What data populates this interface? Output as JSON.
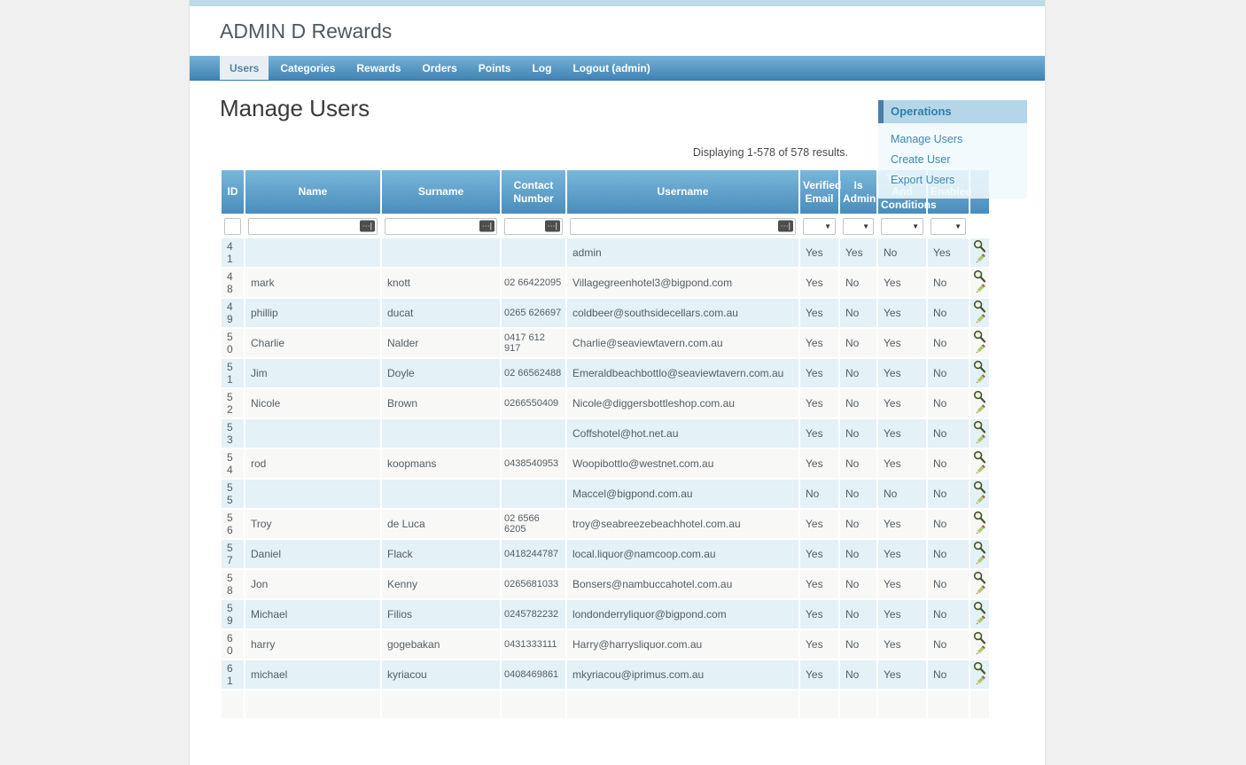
{
  "app": {
    "title": "ADMIN D Rewards"
  },
  "nav": {
    "items": [
      {
        "label": "Users",
        "active": true
      },
      {
        "label": "Categories",
        "active": false
      },
      {
        "label": "Rewards",
        "active": false
      },
      {
        "label": "Orders",
        "active": false
      },
      {
        "label": "Points",
        "active": false
      },
      {
        "label": "Log",
        "active": false
      },
      {
        "label": "Logout (admin)",
        "active": false
      }
    ]
  },
  "page": {
    "heading": "Manage Users",
    "summary": "Displaying 1-578 of 578 results."
  },
  "operations": {
    "title": "Operations",
    "links": [
      "Manage Users",
      "Create User",
      "Export Users"
    ]
  },
  "table": {
    "columns": [
      "ID",
      "Name",
      "Surname",
      "Contact Number",
      "Username",
      "Verified Email",
      "Is Admin",
      "Terms And Conditions",
      "Enabled"
    ],
    "rows": [
      {
        "id": "41",
        "name": "",
        "surname": "",
        "contact": "",
        "username": "admin",
        "verified_email": "Yes",
        "is_admin": "Yes",
        "terms": "No",
        "enabled": "Yes"
      },
      {
        "id": "48",
        "name": "mark",
        "surname": "knott",
        "contact": "02 66422095",
        "username": "Villagegreenhotel3@bigpond.com",
        "verified_email": "Yes",
        "is_admin": "No",
        "terms": "Yes",
        "enabled": "No"
      },
      {
        "id": "49",
        "name": "phillip",
        "surname": "ducat",
        "contact": "0265 626697",
        "username": "coldbeer@southsidecellars.com.au",
        "verified_email": "Yes",
        "is_admin": "No",
        "terms": "Yes",
        "enabled": "No"
      },
      {
        "id": "50",
        "name": "Charlie",
        "surname": "Nalder",
        "contact": "0417 612 917",
        "username": "Charlie@seaviewtavern.com.au",
        "verified_email": "Yes",
        "is_admin": "No",
        "terms": "Yes",
        "enabled": "No"
      },
      {
        "id": "51",
        "name": "Jim",
        "surname": "Doyle",
        "contact": "02 66562488",
        "username": "Emeraldbeachbottlo@seaviewtavern.com.au",
        "verified_email": "Yes",
        "is_admin": "No",
        "terms": "Yes",
        "enabled": "No"
      },
      {
        "id": "52",
        "name": "Nicole",
        "surname": "Brown",
        "contact": "0266550409",
        "username": "Nicole@diggersbottleshop.com.au",
        "verified_email": "Yes",
        "is_admin": "No",
        "terms": "Yes",
        "enabled": "No"
      },
      {
        "id": "53",
        "name": "",
        "surname": "",
        "contact": "",
        "username": "Coffshotel@hot.net.au",
        "verified_email": "Yes",
        "is_admin": "No",
        "terms": "Yes",
        "enabled": "No"
      },
      {
        "id": "54",
        "name": "rod",
        "surname": "koopmans",
        "contact": "0438540953",
        "username": "Woopibottlo@westnet.com.au",
        "verified_email": "Yes",
        "is_admin": "No",
        "terms": "Yes",
        "enabled": "No"
      },
      {
        "id": "55",
        "name": "",
        "surname": "",
        "contact": "",
        "username": "Maccel@bigpond.com.au",
        "verified_email": "No",
        "is_admin": "No",
        "terms": "No",
        "enabled": "No"
      },
      {
        "id": "56",
        "name": "Troy",
        "surname": "de Luca",
        "contact": "02 6566 6205",
        "username": "troy@seabreezebeachhotel.com.au",
        "verified_email": "Yes",
        "is_admin": "No",
        "terms": "Yes",
        "enabled": "No"
      },
      {
        "id": "57",
        "name": "Daniel",
        "surname": "Flack",
        "contact": "0418244787",
        "username": "local.liquor@namcoop.com.au",
        "verified_email": "Yes",
        "is_admin": "No",
        "terms": "Yes",
        "enabled": "No"
      },
      {
        "id": "58",
        "name": "Jon",
        "surname": "Kenny",
        "contact": "0265681033",
        "username": "Bonsers@nambuccahotel.com.au",
        "verified_email": "Yes",
        "is_admin": "No",
        "terms": "Yes",
        "enabled": "No"
      },
      {
        "id": "59",
        "name": "Michael",
        "surname": "Filios",
        "contact": "0245782232",
        "username": "londonderryliquor@bigpond.com",
        "verified_email": "Yes",
        "is_admin": "No",
        "terms": "Yes",
        "enabled": "No"
      },
      {
        "id": "60",
        "name": "harry",
        "surname": "gogebakan",
        "contact": "0431333111",
        "username": "Harry@harrysliquor.com.au",
        "verified_email": "Yes",
        "is_admin": "No",
        "terms": "Yes",
        "enabled": "No"
      },
      {
        "id": "61",
        "name": "michael",
        "surname": "kyriacou",
        "contact": "0408469861",
        "username": "mkyriacou@iprimus.com.au",
        "verified_email": "Yes",
        "is_admin": "No",
        "terms": "Yes",
        "enabled": "No"
      }
    ]
  },
  "icons": {
    "dropdown_glyph": "▼",
    "autofill_glyph": "···|",
    "view": "magnifier",
    "update": "pencil"
  },
  "colors": {
    "nav_gradient_top": "#76b1d7",
    "nav_gradient_bottom": "#4083b3",
    "header_gradient_top": "#7ab6da",
    "header_gradient_bottom": "#4a8dbb",
    "row_odd": "#e4f1f7",
    "row_even": "#f8f8f7",
    "ops_header_bg": "#b5d6e8",
    "ops_link": "#3f87ae",
    "top_strip": "#bcdae8"
  }
}
